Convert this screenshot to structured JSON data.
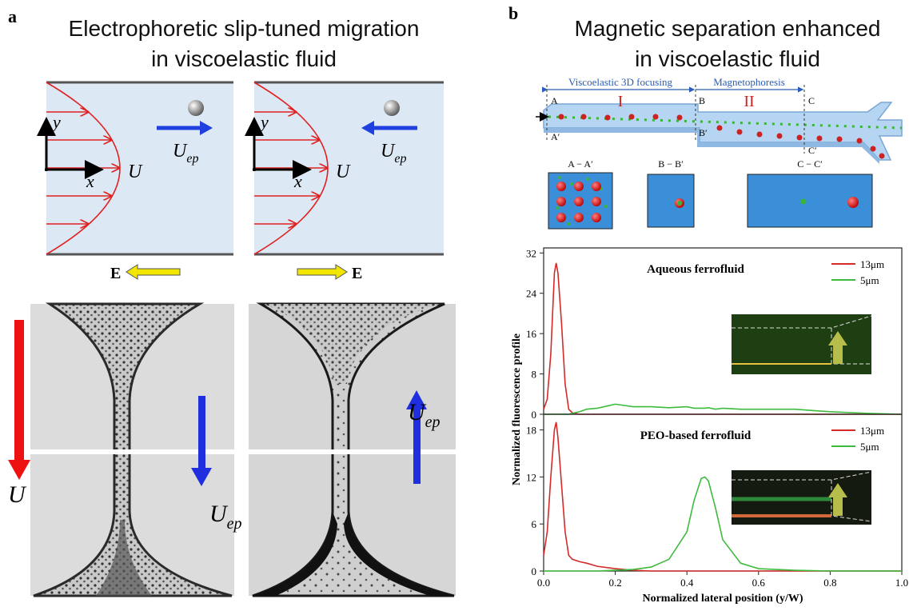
{
  "panel_a": {
    "letter": "a",
    "title_lines": [
      "Electrophoretic slip-tuned migration",
      "in viscoelastic fluid"
    ],
    "axis_y": "y",
    "axis_x": "x",
    "velocity": "U",
    "subscript": "ep",
    "field": "E"
  },
  "panel_b": {
    "letter": "b",
    "title_lines": [
      "Magnetic separation enhanced",
      "in viscoelastic fluid"
    ],
    "regions": [
      "Viscoelastic 3D focusing",
      "Magnetophoresis"
    ],
    "region_numbers": [
      "I",
      "II"
    ],
    "points": [
      "A",
      "A′",
      "B",
      "B′",
      "C",
      "C′"
    ],
    "sections": [
      "A − A′",
      "B − B′",
      "C − C′"
    ]
  },
  "chart_data": [
    {
      "type": "line",
      "title": "Aqueous ferrofluid",
      "x": [
        0,
        0.01,
        0.02,
        0.03,
        0.035,
        0.04,
        0.05,
        0.06,
        0.07,
        0.08,
        0.1,
        0.12,
        0.15,
        0.2,
        0.25,
        0.3,
        0.35,
        0.4,
        0.42,
        0.44,
        0.45,
        0.46,
        0.48,
        0.5,
        0.55,
        0.6,
        0.7,
        0.8,
        0.9,
        1.0
      ],
      "xlim": [
        0,
        1
      ],
      "ylim": [
        0,
        33
      ],
      "yticks": [
        0,
        8,
        16,
        24,
        32
      ],
      "legend": "upper right",
      "series": [
        {
          "name": "13μm",
          "color": "#d42a2a",
          "values": [
            1,
            3,
            12,
            28,
            30,
            28,
            18,
            6,
            1,
            0.3,
            0,
            0,
            0,
            0,
            0,
            0,
            0,
            0,
            0,
            0,
            0,
            0,
            0,
            0,
            0,
            0,
            0,
            0,
            0,
            0
          ]
        },
        {
          "name": "5μm",
          "color": "#3dbb3d",
          "values": [
            0,
            0,
            0,
            0,
            0,
            0,
            0,
            0,
            0,
            0.2,
            0.5,
            1,
            1.2,
            2,
            1.5,
            1.5,
            1.3,
            1.5,
            1.2,
            1.2,
            1.2,
            1.3,
            1,
            1.2,
            1,
            1,
            1,
            0.5,
            0.2,
            0
          ]
        }
      ]
    },
    {
      "type": "line",
      "title": "PEO-based ferrofluid",
      "xlabel": "Normalized lateral position (y/W)",
      "ylabel": "Normalized fluorescence profile",
      "x": [
        0,
        0.01,
        0.02,
        0.03,
        0.035,
        0.04,
        0.05,
        0.06,
        0.07,
        0.08,
        0.1,
        0.12,
        0.15,
        0.2,
        0.25,
        0.3,
        0.35,
        0.4,
        0.42,
        0.44,
        0.45,
        0.46,
        0.48,
        0.5,
        0.55,
        0.6,
        0.7,
        0.8,
        0.9,
        1.0
      ],
      "xlim": [
        0,
        1
      ],
      "xticks": [
        {
          "value": 0,
          "label": "0.0"
        },
        0.2,
        0.4,
        0.6,
        0.8,
        {
          "value": 1,
          "label": "1.0"
        }
      ],
      "ylim": [
        0,
        20
      ],
      "yticks": [
        0,
        6,
        12,
        18
      ],
      "legend": "upper right",
      "series": [
        {
          "name": "13μm",
          "color": "#d42a2a",
          "values": [
            2,
            5,
            12,
            18,
            19,
            17,
            11,
            5,
            2,
            1.5,
            1.2,
            1,
            0.6,
            0.3,
            0.1,
            0,
            0,
            0,
            0,
            0,
            0,
            0,
            0,
            0,
            0,
            0,
            0,
            0,
            0,
            0
          ]
        },
        {
          "name": "5μm",
          "color": "#3dbb3d",
          "values": [
            0,
            0,
            0,
            0,
            0,
            0,
            0,
            0,
            0,
            0,
            0,
            0,
            0,
            0.1,
            0.2,
            0.5,
            1.5,
            5,
            9,
            11.8,
            12,
            11.5,
            8,
            4,
            1,
            0.3,
            0.1,
            0,
            0,
            0
          ]
        }
      ]
    }
  ]
}
